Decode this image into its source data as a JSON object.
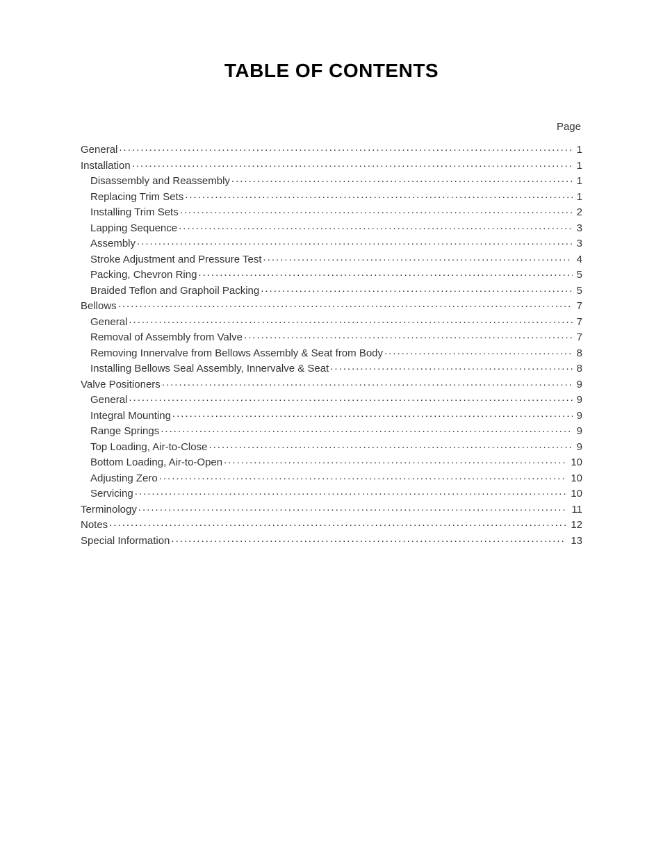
{
  "doc": {
    "title": "TABLE OF CONTENTS",
    "page_label": "Page",
    "title_fontsize": 28,
    "body_fontsize": 15,
    "title_color": "#000000",
    "text_color": "#333333",
    "background_color": "#ffffff",
    "entries": [
      {
        "label": "General",
        "page": "1",
        "indent": 0
      },
      {
        "label": "Installation",
        "page": "1",
        "indent": 0
      },
      {
        "label": "Disassembly and Reassembly",
        "page": "1",
        "indent": 1
      },
      {
        "label": "Replacing Trim Sets",
        "page": "1",
        "indent": 1
      },
      {
        "label": "Installing Trim Sets",
        "page": "2",
        "indent": 1
      },
      {
        "label": "Lapping Sequence",
        "page": "3",
        "indent": 1
      },
      {
        "label": "Assembly",
        "page": "3",
        "indent": 1
      },
      {
        "label": "Stroke Adjustment and Pressure Test",
        "page": "4",
        "indent": 1
      },
      {
        "label": "Packing, Chevron Ring",
        "page": "5",
        "indent": 1
      },
      {
        "label": "Braided Teflon and Graphoil Packing",
        "page": "5",
        "indent": 1
      },
      {
        "label": "Bellows",
        "page": "7",
        "indent": 0
      },
      {
        "label": "General",
        "page": "7",
        "indent": 1
      },
      {
        "label": "Removal of Assembly from Valve",
        "page": "7",
        "indent": 1
      },
      {
        "label": "Removing Innervalve from Bellows Assembly & Seat from Body",
        "page": "8",
        "indent": 1
      },
      {
        "label": "Installing Bellows Seal Assembly, Innervalve & Seat",
        "page": "8",
        "indent": 1
      },
      {
        "label": "Valve Positioners",
        "page": "9",
        "indent": 0
      },
      {
        "label": "General",
        "page": "9",
        "indent": 1
      },
      {
        "label": "Integral Mounting",
        "page": "9",
        "indent": 1
      },
      {
        "label": "Range Springs",
        "page": "9",
        "indent": 1
      },
      {
        "label": "Top Loading, Air-to-Close",
        "page": "9",
        "indent": 1
      },
      {
        "label": "Bottom Loading, Air-to-Open",
        "page": "10",
        "indent": 1
      },
      {
        "label": "Adjusting Zero",
        "page": "10",
        "indent": 1
      },
      {
        "label": "Servicing",
        "page": "10",
        "indent": 1
      },
      {
        "label": "Terminology",
        "page": "11",
        "indent": 0
      },
      {
        "label": "Notes",
        "page": "12",
        "indent": 0
      },
      {
        "label": "Special Information",
        "page": "13",
        "indent": 0
      }
    ]
  }
}
